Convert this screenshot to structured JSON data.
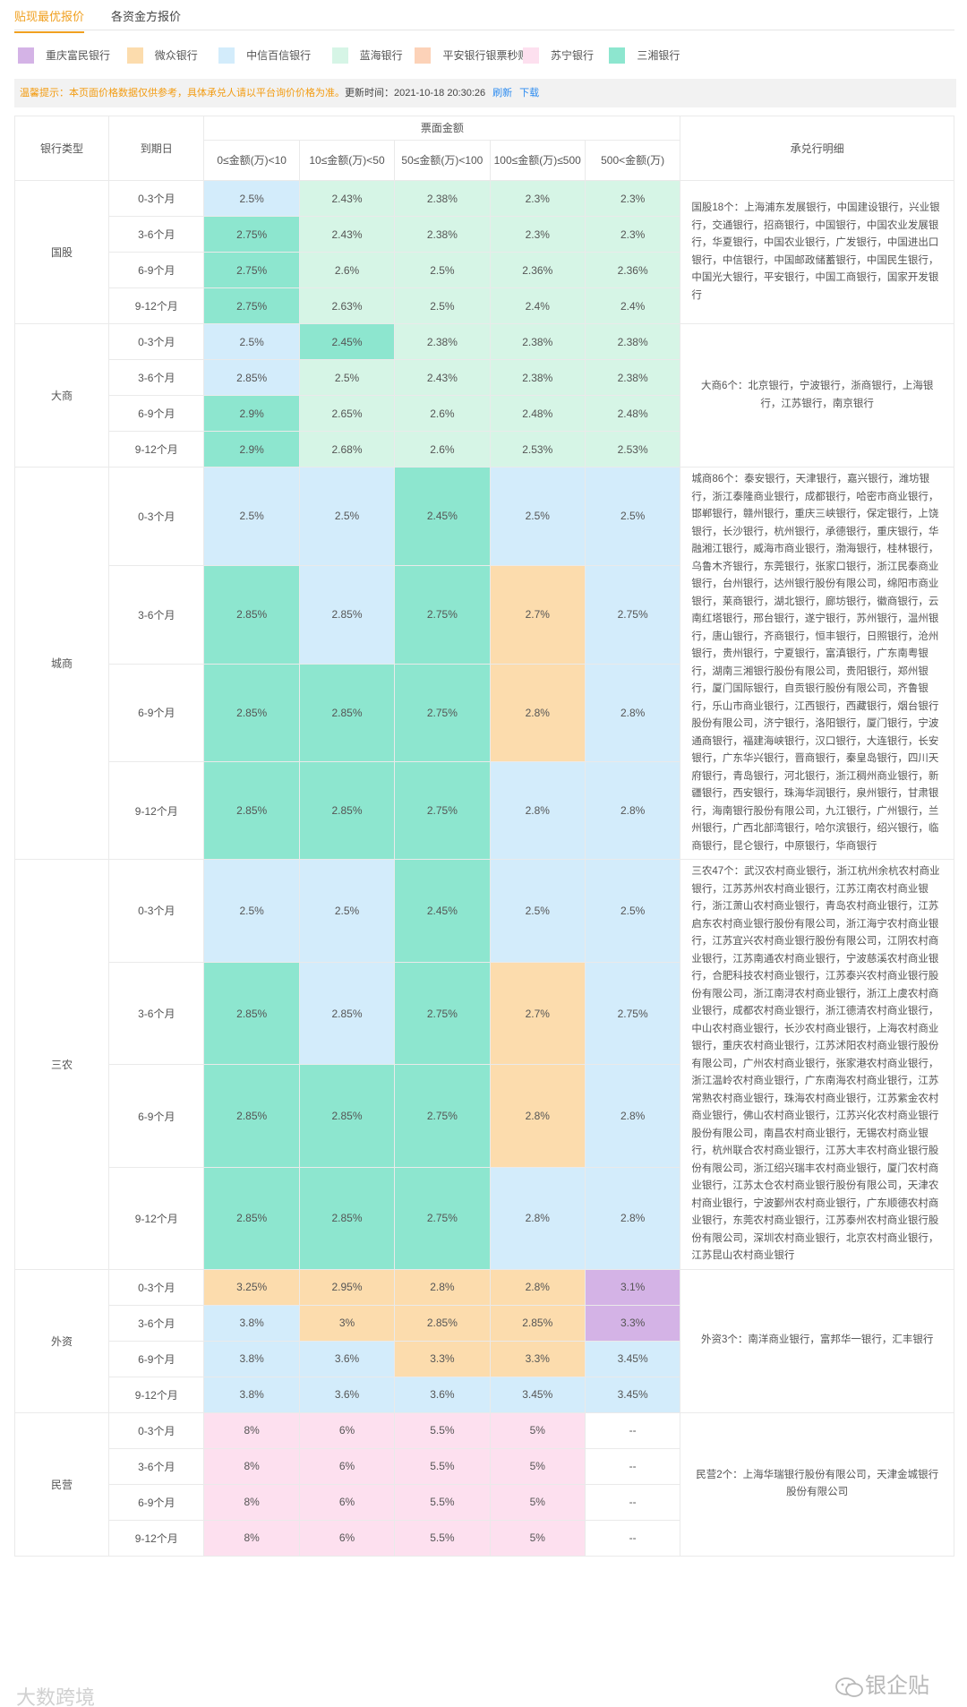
{
  "tabs": [
    "贴现最优报价",
    "各资金方报价"
  ],
  "legend": [
    {
      "label": "重庆富民银行",
      "color": "#d4b3e6"
    },
    {
      "label": "微众银行",
      "color": "#fcdcad"
    },
    {
      "label": "中信百信银行",
      "color": "#d3ecfb"
    },
    {
      "label": "蓝海银行",
      "color": "#d6f5e6"
    },
    {
      "label": "平安银行银票秒贴",
      "color": "#fcd2b8"
    },
    {
      "label": "苏宁银行",
      "color": "#fde0ef"
    },
    {
      "label": "三湘银行",
      "color": "#8de6cf"
    }
  ],
  "notice": {
    "warning": "温馨提示：本页面价格数据仅供参考，具体承兑人请以平台询价价格为准。",
    "updated": "更新时间：2021-10-18 20:30:26",
    "refresh": "刷新",
    "download": "下载"
  },
  "table": {
    "h_bank_type": "银行类型",
    "h_term": "到期日",
    "h_face": "票面金额",
    "h_detail": "承兑行明细",
    "amount_headers": [
      "0≤金额(万)<10",
      "10≤金额(万)<50",
      "50≤金额(万)<100",
      "100≤金额(万)≤500",
      "500<金额(万)"
    ],
    "groups": [
      {
        "type": "国股",
        "detail": "国股18个：上海浦东发展银行，中国建设银行，兴业银行，交通银行，招商银行，中国银行，中国农业发展银行，华夏银行，中国农业银行，广发银行，中国进出口银行，中信银行，中国邮政储蓄银行，中国民生银行，中国光大银行，平安银行，中国工商银行，国家开发银行",
        "rows": [
          {
            "term": "0-3个月",
            "values": [
              "2.5%",
              "2.43%",
              "2.38%",
              "2.3%",
              "2.3%"
            ],
            "colors": [
              "#d3ecfb",
              "#d6f5e6",
              "#d6f5e6",
              "#d6f5e6",
              "#d6f5e6"
            ]
          },
          {
            "term": "3-6个月",
            "values": [
              "2.75%",
              "2.43%",
              "2.38%",
              "2.3%",
              "2.3%"
            ],
            "colors": [
              "#8de6cf",
              "#d6f5e6",
              "#d6f5e6",
              "#d6f5e6",
              "#d6f5e6"
            ]
          },
          {
            "term": "6-9个月",
            "values": [
              "2.75%",
              "2.6%",
              "2.5%",
              "2.36%",
              "2.36%"
            ],
            "colors": [
              "#8de6cf",
              "#d6f5e6",
              "#d6f5e6",
              "#d6f5e6",
              "#d6f5e6"
            ]
          },
          {
            "term": "9-12个月",
            "values": [
              "2.75%",
              "2.63%",
              "2.5%",
              "2.4%",
              "2.4%"
            ],
            "colors": [
              "#8de6cf",
              "#d6f5e6",
              "#d6f5e6",
              "#d6f5e6",
              "#d6f5e6"
            ]
          }
        ]
      },
      {
        "type": "大商",
        "detail": "大商6个：北京银行，宁波银行，浙商银行，上海银行，江苏银行，南京银行",
        "rows": [
          {
            "term": "0-3个月",
            "values": [
              "2.5%",
              "2.45%",
              "2.38%",
              "2.38%",
              "2.38%"
            ],
            "colors": [
              "#d3ecfb",
              "#8de6cf",
              "#d6f5e6",
              "#d6f5e6",
              "#d6f5e6"
            ]
          },
          {
            "term": "3-6个月",
            "values": [
              "2.85%",
              "2.5%",
              "2.43%",
              "2.38%",
              "2.38%"
            ],
            "colors": [
              "#d3ecfb",
              "#d6f5e6",
              "#d6f5e6",
              "#d6f5e6",
              "#d6f5e6"
            ]
          },
          {
            "term": "6-9个月",
            "values": [
              "2.9%",
              "2.65%",
              "2.6%",
              "2.48%",
              "2.48%"
            ],
            "colors": [
              "#8de6cf",
              "#d6f5e6",
              "#d6f5e6",
              "#d6f5e6",
              "#d6f5e6"
            ]
          },
          {
            "term": "9-12个月",
            "values": [
              "2.9%",
              "2.68%",
              "2.6%",
              "2.53%",
              "2.53%"
            ],
            "colors": [
              "#8de6cf",
              "#d6f5e6",
              "#d6f5e6",
              "#d6f5e6",
              "#d6f5e6"
            ]
          }
        ]
      },
      {
        "type": "城商",
        "detail": "城商86个：泰安银行，天津银行，嘉兴银行，潍坊银行，浙江泰隆商业银行，成都银行，哈密市商业银行，邯郸银行，赣州银行，重庆三峡银行，保定银行，上饶银行，长沙银行，杭州银行，承德银行，重庆银行，华融湘江银行，威海市商业银行，渤海银行，桂林银行，乌鲁木齐银行，东莞银行，张家口银行，浙江民泰商业银行，台州银行，达州银行股份有限公司，绵阳市商业银行，莱商银行，湖北银行，廊坊银行，徽商银行，云南红塔银行，邢台银行，遂宁银行，苏州银行，温州银行，唐山银行，齐商银行，恒丰银行，日照银行，沧州银行，贵州银行，宁夏银行，富滇银行，广东南粤银行，湖南三湘银行股份有限公司，贵阳银行，郑州银行，厦门国际银行，自贡银行股份有限公司，齐鲁银行，乐山市商业银行，江西银行，西藏银行，烟台银行股份有限公司，济宁银行，洛阳银行，厦门银行，宁波通商银行，福建海峡银行，汉口银行，大连银行，长安银行，广东华兴银行，晋商银行，秦皇岛银行，四川天府银行，青岛银行，河北银行，浙江稠州商业银行，新疆银行，西安银行，珠海华润银行，泉州银行，甘肃银行，海南银行股份有限公司，九江银行，广州银行，兰州银行，广西北部湾银行，哈尔滨银行，绍兴银行，临商银行，昆仑银行，中原银行，华商银行",
        "rows": [
          {
            "term": "0-3个月",
            "values": [
              "2.5%",
              "2.5%",
              "2.45%",
              "2.5%",
              "2.5%"
            ],
            "colors": [
              "#d3ecfb",
              "#d3ecfb",
              "#8de6cf",
              "#d3ecfb",
              "#d3ecfb"
            ]
          },
          {
            "term": "3-6个月",
            "values": [
              "2.85%",
              "2.85%",
              "2.75%",
              "2.7%",
              "2.75%"
            ],
            "colors": [
              "#8de6cf",
              "#d3ecfb",
              "#8de6cf",
              "#fcdcad",
              "#d3ecfb"
            ]
          },
          {
            "term": "6-9个月",
            "values": [
              "2.85%",
              "2.85%",
              "2.75%",
              "2.8%",
              "2.8%"
            ],
            "colors": [
              "#8de6cf",
              "#8de6cf",
              "#8de6cf",
              "#fcdcad",
              "#d3ecfb"
            ]
          },
          {
            "term": "9-12个月",
            "values": [
              "2.85%",
              "2.85%",
              "2.75%",
              "2.8%",
              "2.8%"
            ],
            "colors": [
              "#8de6cf",
              "#8de6cf",
              "#8de6cf",
              "#d3ecfb",
              "#d3ecfb"
            ]
          }
        ]
      },
      {
        "type": "三农",
        "detail": "三农47个：武汉农村商业银行，浙江杭州余杭农村商业银行，江苏苏州农村商业银行，江苏江南农村商业银行，浙江萧山农村商业银行，青岛农村商业银行，江苏启东农村商业银行股份有限公司，浙江海宁农村商业银行，江苏宜兴农村商业银行股份有限公司，江阴农村商业银行，江苏南通农村商业银行，宁波慈溪农村商业银行，合肥科技农村商业银行，江苏泰兴农村商业银行股份有限公司，浙江南浔农村商业银行，浙江上虞农村商业银行，成都农村商业银行，浙江德清农村商业银行，中山农村商业银行，长沙农村商业银行，上海农村商业银行，重庆农村商业银行，江苏沭阳农村商业银行股份有限公司，广州农村商业银行，张家港农村商业银行，浙江温岭农村商业银行，广东南海农村商业银行，江苏常熟农村商业银行，珠海农村商业银行，江苏紫金农村商业银行，佛山农村商业银行，江苏兴化农村商业银行股份有限公司，南昌农村商业银行，无锡农村商业银行，杭州联合农村商业银行，江苏大丰农村商业银行股份有限公司，浙江绍兴瑞丰农村商业银行，厦门农村商业银行，江苏太仓农村商业银行股份有限公司，天津农村商业银行，宁波鄞州农村商业银行，广东顺德农村商业银行，东莞农村商业银行，江苏泰州农村商业银行股份有限公司，深圳农村商业银行，北京农村商业银行，江苏昆山农村商业银行",
        "rows": [
          {
            "term": "0-3个月",
            "values": [
              "2.5%",
              "2.5%",
              "2.45%",
              "2.5%",
              "2.5%"
            ],
            "colors": [
              "#d3ecfb",
              "#d3ecfb",
              "#8de6cf",
              "#d3ecfb",
              "#d3ecfb"
            ]
          },
          {
            "term": "3-6个月",
            "values": [
              "2.85%",
              "2.85%",
              "2.75%",
              "2.7%",
              "2.75%"
            ],
            "colors": [
              "#8de6cf",
              "#d3ecfb",
              "#8de6cf",
              "#fcdcad",
              "#d3ecfb"
            ]
          },
          {
            "term": "6-9个月",
            "values": [
              "2.85%",
              "2.85%",
              "2.75%",
              "2.8%",
              "2.8%"
            ],
            "colors": [
              "#8de6cf",
              "#8de6cf",
              "#8de6cf",
              "#fcdcad",
              "#d3ecfb"
            ]
          },
          {
            "term": "9-12个月",
            "values": [
              "2.85%",
              "2.85%",
              "2.75%",
              "2.8%",
              "2.8%"
            ],
            "colors": [
              "#8de6cf",
              "#8de6cf",
              "#8de6cf",
              "#d3ecfb",
              "#d3ecfb"
            ]
          }
        ]
      },
      {
        "type": "外资",
        "detail": "外资3个：南洋商业银行，富邦华一银行，汇丰银行",
        "rows": [
          {
            "term": "0-3个月",
            "values": [
              "3.25%",
              "2.95%",
              "2.8%",
              "2.8%",
              "3.1%"
            ],
            "colors": [
              "#fcdcad",
              "#fcdcad",
              "#fcdcad",
              "#fcdcad",
              "#d4b3e6"
            ]
          },
          {
            "term": "3-6个月",
            "values": [
              "3.8%",
              "3%",
              "2.85%",
              "2.85%",
              "3.3%"
            ],
            "colors": [
              "#d3ecfb",
              "#fcdcad",
              "#fcdcad",
              "#fcdcad",
              "#d4b3e6"
            ]
          },
          {
            "term": "6-9个月",
            "values": [
              "3.8%",
              "3.6%",
              "3.3%",
              "3.3%",
              "3.45%"
            ],
            "colors": [
              "#d3ecfb",
              "#d3ecfb",
              "#fcdcad",
              "#fcdcad",
              "#d3ecfb"
            ]
          },
          {
            "term": "9-12个月",
            "values": [
              "3.8%",
              "3.6%",
              "3.6%",
              "3.45%",
              "3.45%"
            ],
            "colors": [
              "#d3ecfb",
              "#d3ecfb",
              "#d3ecfb",
              "#d3ecfb",
              "#d3ecfb"
            ]
          }
        ]
      },
      {
        "type": "民营",
        "detail": "民营2个：上海华瑞银行股份有限公司，天津金城银行股份有限公司",
        "rows": [
          {
            "term": "0-3个月",
            "values": [
              "8%",
              "6%",
              "5.5%",
              "5%",
              "--"
            ],
            "colors": [
              "#fde0ef",
              "#fde0ef",
              "#fde0ef",
              "#fde0ef",
              "#ffffff"
            ]
          },
          {
            "term": "3-6个月",
            "values": [
              "8%",
              "6%",
              "5.5%",
              "5%",
              "--"
            ],
            "colors": [
              "#fde0ef",
              "#fde0ef",
              "#fde0ef",
              "#fde0ef",
              "#ffffff"
            ]
          },
          {
            "term": "6-9个月",
            "values": [
              "8%",
              "6%",
              "5.5%",
              "5%",
              "--"
            ],
            "colors": [
              "#fde0ef",
              "#fde0ef",
              "#fde0ef",
              "#fde0ef",
              "#ffffff"
            ]
          },
          {
            "term": "9-12个月",
            "values": [
              "8%",
              "6%",
              "5.5%",
              "5%",
              "--"
            ],
            "colors": [
              "#fde0ef",
              "#fde0ef",
              "#fde0ef",
              "#fde0ef",
              "#ffffff"
            ]
          }
        ]
      }
    ]
  },
  "watermark_left": "大数跨境",
  "watermark_right": "银企贴"
}
